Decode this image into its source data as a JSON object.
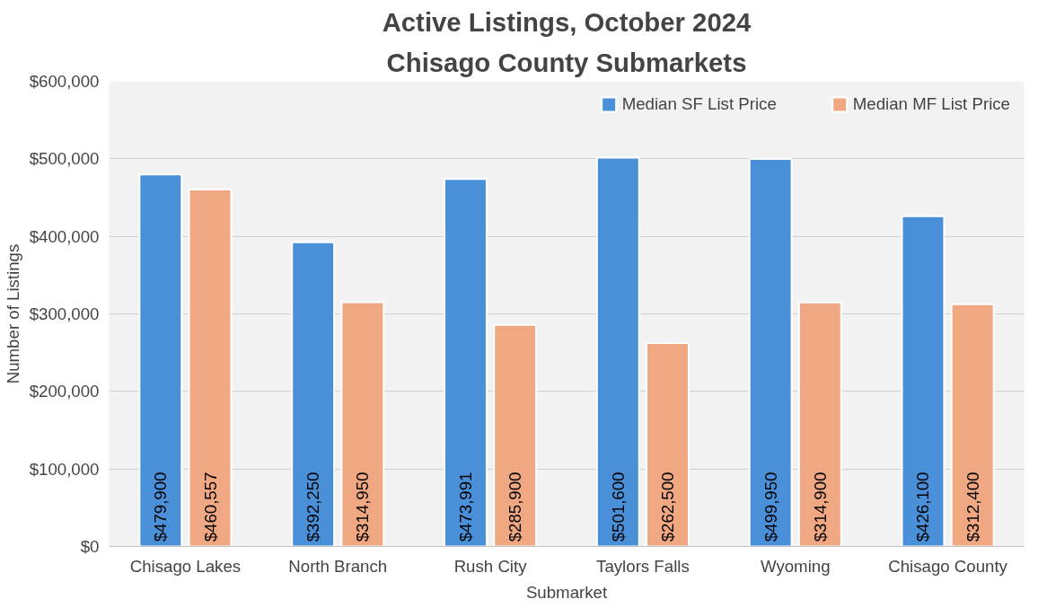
{
  "chart_data": {
    "type": "bar",
    "title": "Active Listings, October 2024",
    "subtitle": "Chisago County Submarkets",
    "xlabel": "Submarket",
    "ylabel": "Number of Listings",
    "categories": [
      "Chisago Lakes",
      "North Branch",
      "Rush City",
      "Taylors Falls",
      "Wyoming",
      "Chisago County"
    ],
    "series": [
      {
        "name": "Median SF List Price",
        "color": "#4a90d9",
        "values": [
          479900,
          392250,
          473991,
          501600,
          499950,
          426100
        ],
        "value_labels": [
          "$479,900",
          "$392,250",
          "$473,991",
          "$501,600",
          "$499,950",
          "$426,100"
        ]
      },
      {
        "name": "Median MF List Price",
        "color": "#f0a882",
        "values": [
          460557,
          314950,
          285900,
          262500,
          314900,
          312400
        ],
        "value_labels": [
          "$460,557",
          "$314,950",
          "$285,900",
          "$262,500",
          "$314,900",
          "$312,400"
        ]
      }
    ],
    "ylim": [
      0,
      600000
    ],
    "yticks": [
      {
        "value": 0,
        "label": "$0"
      },
      {
        "value": 100000,
        "label": "$100,000"
      },
      {
        "value": 200000,
        "label": "$200,000"
      },
      {
        "value": 300000,
        "label": "$300,000"
      },
      {
        "value": 400000,
        "label": "$400,000"
      },
      {
        "value": 500000,
        "label": "$500,000"
      },
      {
        "value": 600000,
        "label": "$600,000"
      }
    ],
    "grid": "y",
    "legend": "top right"
  }
}
